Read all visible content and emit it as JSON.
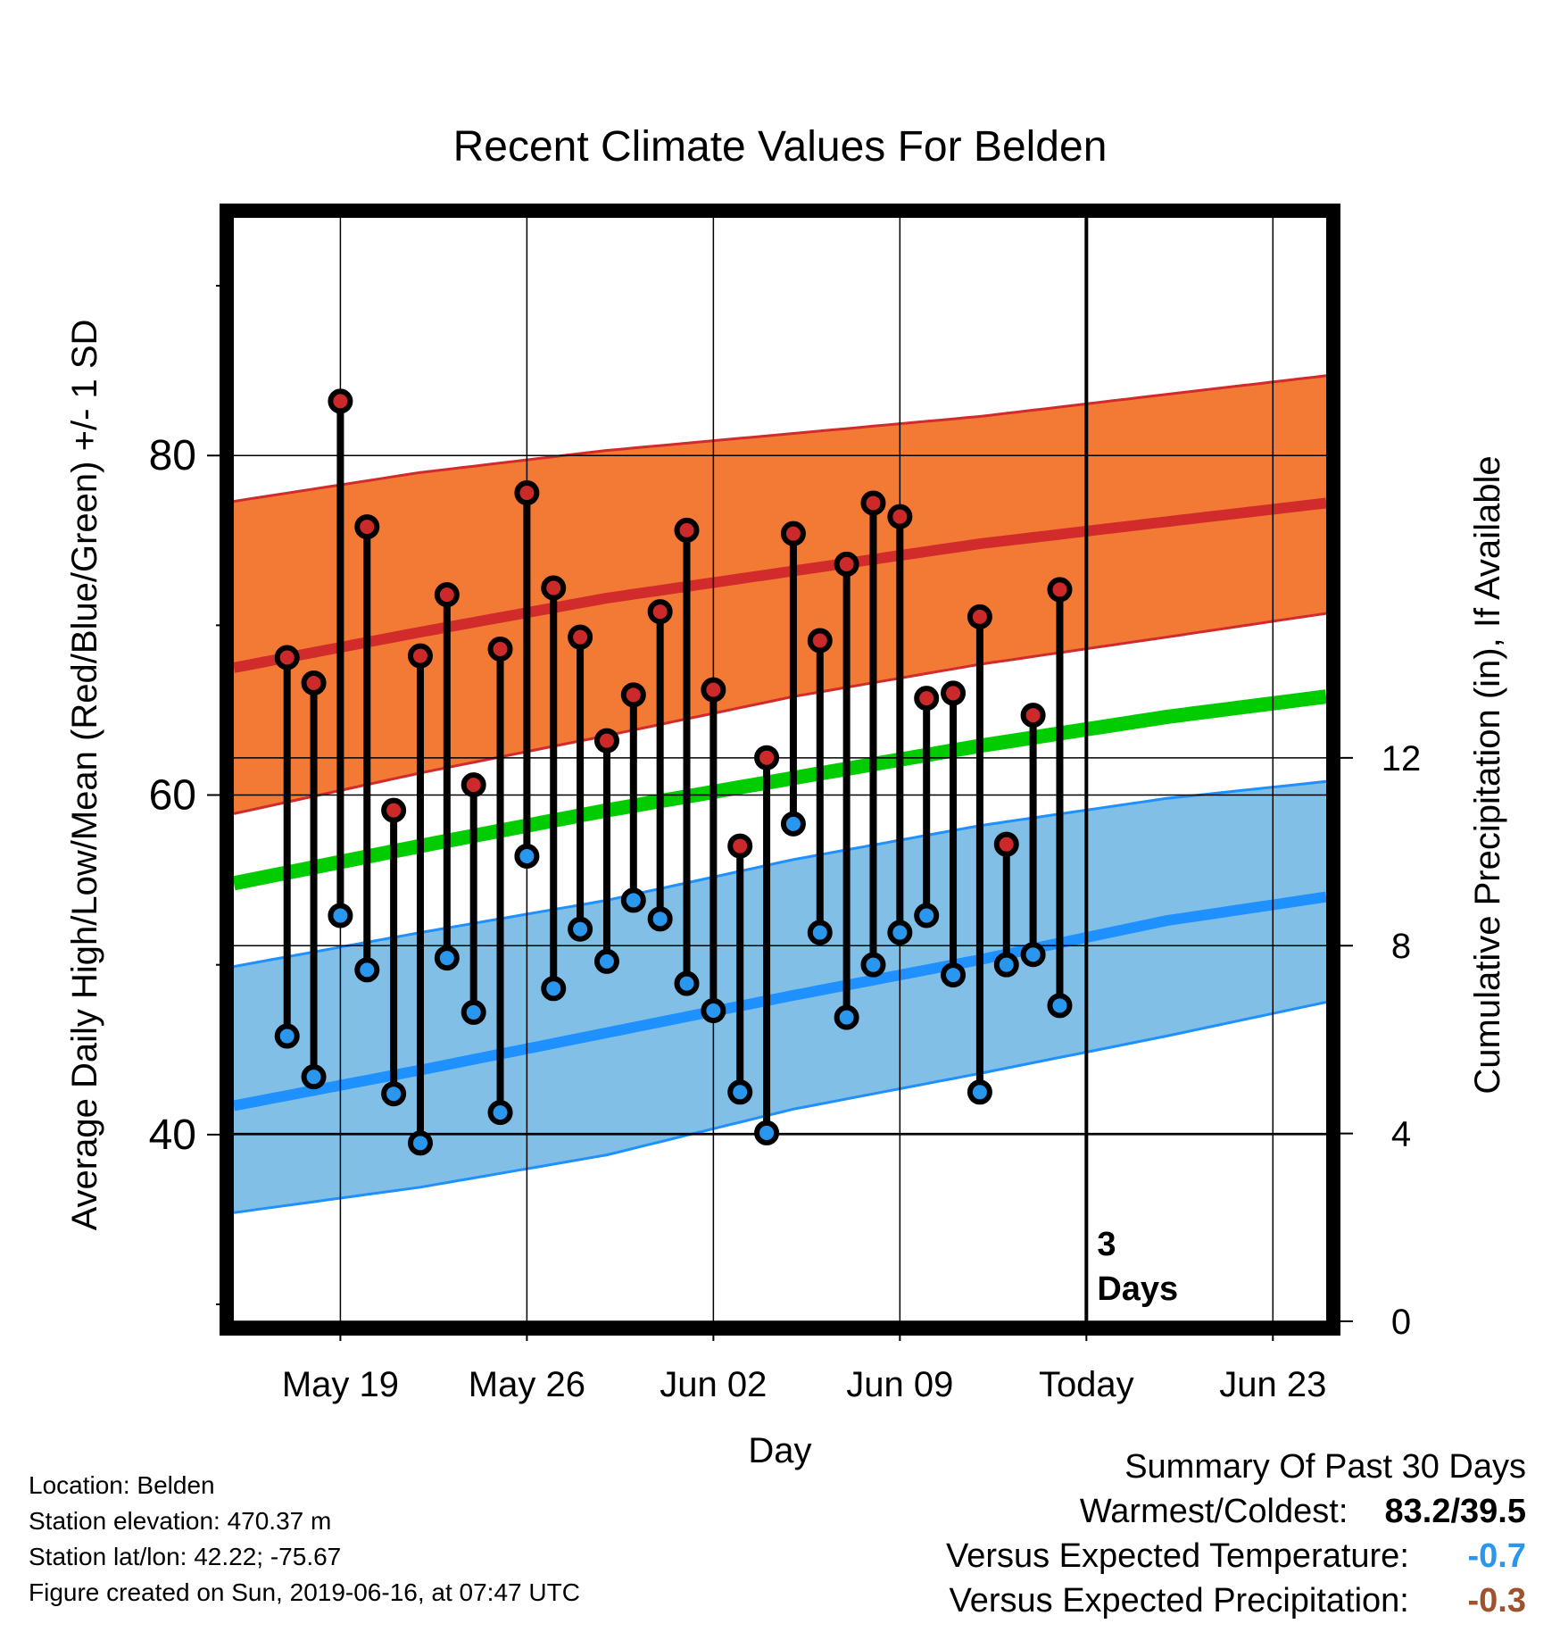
{
  "chart_data": {
    "type": "line",
    "title": "Recent Climate Values For Belden",
    "xlabel": "Day",
    "ylabel": "Average Daily High/Low/Mean (Red/Blue/Green) +/- 1 SD",
    "y2label": "Cumulative Precipitation (in), If Available",
    "x_ticks": [
      "May 19",
      "May 26",
      "Jun 02",
      "Jun 09",
      "Today",
      "Jun 23"
    ],
    "x_tick_dates": [
      "2019-05-19",
      "2019-05-26",
      "2019-06-02",
      "2019-06-09",
      "2019-06-16",
      "2019-06-23"
    ],
    "xlim": [
      "2019-05-15",
      "2019-06-25"
    ],
    "today": "2019-06-16",
    "today_annotation": [
      "3",
      "Days"
    ],
    "ylim": [
      29,
      94
    ],
    "y_ticks": [
      40,
      60,
      80
    ],
    "y2lim": [
      0,
      23.5
    ],
    "y2_ticks": [
      0,
      4,
      8,
      12
    ],
    "grid": true,
    "colors": {
      "high_band": "#f37a35",
      "high_mean": "#d12b2b",
      "low_band": "#81bfe6",
      "low_mean": "#1e90ff",
      "mean": "#00cc00",
      "stem": "#000000",
      "high_marker": "#cc2a2a",
      "low_marker": "#2a97ee"
    },
    "normals": {
      "dates": [
        "2019-05-15",
        "2019-05-22",
        "2019-05-29",
        "2019-06-05",
        "2019-06-12",
        "2019-06-19",
        "2019-06-25"
      ],
      "high_mean": [
        67.5,
        69.6,
        71.6,
        73.2,
        74.8,
        76.1,
        77.2
      ],
      "high_plus_sd": [
        77.3,
        79.0,
        80.3,
        81.3,
        82.3,
        83.6,
        84.7
      ],
      "high_minus_sd": [
        58.9,
        61.3,
        63.5,
        65.8,
        67.7,
        69.3,
        70.7
      ],
      "mean": [
        54.8,
        57.0,
        59.1,
        61.0,
        62.9,
        64.6,
        65.8
      ],
      "low_mean": [
        41.7,
        43.8,
        46.0,
        48.2,
        50.3,
        52.6,
        54.0
      ],
      "low_plus_sd": [
        49.9,
        51.9,
        53.8,
        56.2,
        58.2,
        59.8,
        60.8
      ],
      "low_minus_sd": [
        35.4,
        36.9,
        38.8,
        41.5,
        43.6,
        45.8,
        47.8
      ]
    },
    "series": [
      {
        "name": "High",
        "dates": [
          "2019-05-17",
          "2019-05-18",
          "2019-05-19",
          "2019-05-20",
          "2019-05-21",
          "2019-05-22",
          "2019-05-23",
          "2019-05-24",
          "2019-05-25",
          "2019-05-26",
          "2019-05-27",
          "2019-05-28",
          "2019-05-29",
          "2019-05-30",
          "2019-05-31",
          "2019-06-01",
          "2019-06-02",
          "2019-06-03",
          "2019-06-04",
          "2019-06-05",
          "2019-06-06",
          "2019-06-07",
          "2019-06-08",
          "2019-06-09",
          "2019-06-10",
          "2019-06-11",
          "2019-06-12",
          "2019-06-13",
          "2019-06-14",
          "2019-06-15"
        ],
        "values": [
          68.1,
          66.6,
          83.2,
          75.8,
          59.1,
          68.2,
          71.8,
          60.6,
          68.6,
          77.8,
          72.2,
          69.3,
          63.2,
          65.9,
          70.8,
          75.6,
          66.2,
          57.0,
          62.2,
          75.4,
          69.1,
          73.6,
          77.2,
          76.4,
          65.7,
          66.0,
          70.5,
          57.1,
          64.7,
          72.1
        ]
      },
      {
        "name": "Low",
        "dates": [
          "2019-05-17",
          "2019-05-18",
          "2019-05-19",
          "2019-05-20",
          "2019-05-21",
          "2019-05-22",
          "2019-05-23",
          "2019-05-24",
          "2019-05-25",
          "2019-05-26",
          "2019-05-27",
          "2019-05-28",
          "2019-05-29",
          "2019-05-30",
          "2019-05-31",
          "2019-06-01",
          "2019-06-02",
          "2019-06-03",
          "2019-06-04",
          "2019-06-05",
          "2019-06-06",
          "2019-06-07",
          "2019-06-08",
          "2019-06-09",
          "2019-06-10",
          "2019-06-11",
          "2019-06-12",
          "2019-06-13",
          "2019-06-14",
          "2019-06-15"
        ],
        "values": [
          45.8,
          43.4,
          52.9,
          49.7,
          42.4,
          39.5,
          50.4,
          47.2,
          41.3,
          56.4,
          48.6,
          52.1,
          50.2,
          53.8,
          52.7,
          48.9,
          47.3,
          42.5,
          40.1,
          58.3,
          51.9,
          46.9,
          50.0,
          51.9,
          52.9,
          49.4,
          42.5,
          50.0,
          50.6,
          47.6
        ]
      }
    ]
  },
  "footer": {
    "location": "Location: Belden",
    "elevation": "Station elevation: 470.37 m",
    "latlon": "Station lat/lon: 42.22; -75.67",
    "created": "Figure created on Sun, 2019-06-16, at 07:47 UTC"
  },
  "summary": {
    "title": "Summary Of Past 30 Days",
    "warmest_label": "Warmest/Coldest:",
    "warmest_value": "83.2/39.5",
    "temp_label": "Versus Expected Temperature:",
    "temp_value": "-0.7",
    "temp_color": "#2a97ee",
    "precip_label": "Versus Expected Precipitation:",
    "precip_value": "-0.3",
    "precip_color": "#a0522d"
  }
}
